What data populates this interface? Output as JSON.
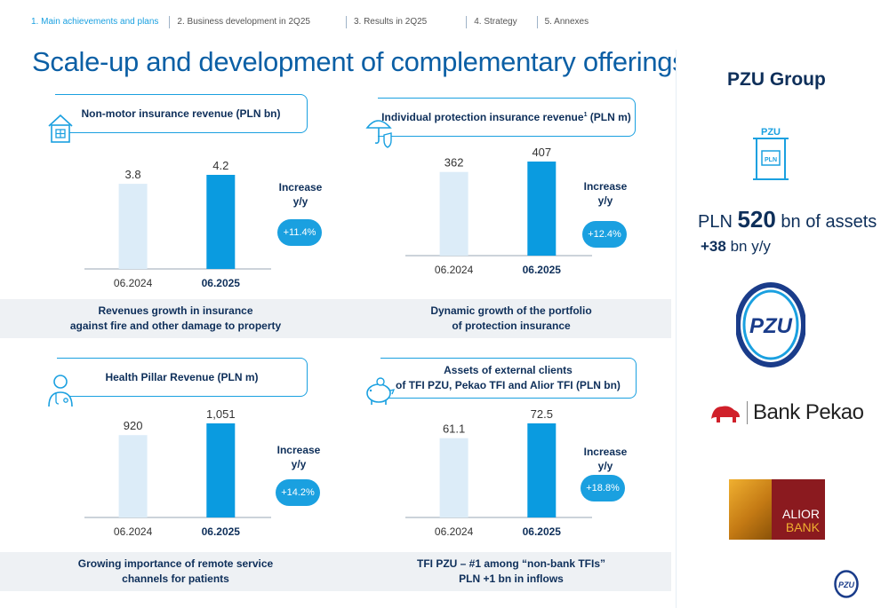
{
  "nav": {
    "items": [
      "1. Main achievements and plans",
      "2. Business development in 2Q25",
      "3. Results in 2Q25",
      "4. Strategy",
      "5. Annexes"
    ]
  },
  "title": "Scale-up and development of complementary offerings",
  "sidebar": {
    "title": "PZU Group",
    "building_label": "PZU",
    "building_sign": "PLN",
    "assets_prefix": "PLN ",
    "assets_value": "520",
    "assets_suffix": " bn of assets",
    "growth_value": "+38",
    "growth_suffix": " bn y/y",
    "pzu_logo_text": "PZU",
    "pekao_text": "Bank Pekao",
    "alior_line1": "ALIOR",
    "alior_line2": "BANK"
  },
  "panels": [
    {
      "header": "Non-motor insurance revenue (PLN bn)",
      "header_sup": "",
      "header_suffix": "",
      "icon": "house-icon",
      "increase_label_1": "Increase",
      "increase_label_2": "y/y",
      "increase_value": "+11.4%",
      "caption_1": "Revenues growth in insurance",
      "caption_2": "against fire and other damage to property"
    },
    {
      "header": "Individual protection insurance revenue",
      "header_sup": "1",
      "header_suffix": " (PLN m)",
      "icon": "umbrella-shield-icon",
      "increase_label_1": "Increase",
      "increase_label_2": "y/y",
      "increase_value": "+12.4%",
      "caption_1": "Dynamic growth of the portfolio",
      "caption_2": "of protection insurance"
    },
    {
      "header": "Health Pillar Revenue (PLN m)",
      "header_sup": "",
      "header_suffix": "",
      "icon": "doctor-icon",
      "increase_label_1": "Increase",
      "increase_label_2": "y/y",
      "increase_value": "+14.2%",
      "caption_1": "Growing importance of remote service",
      "caption_2": "channels for patients"
    },
    {
      "header": "Assets of external clients",
      "header_sup": "",
      "header_suffix": "of TFI PZU, Pekao TFI and Alior TFI (PLN bn)",
      "icon": "piggy-bank-icon",
      "increase_label_1": "Increase",
      "increase_label_2": "y/y",
      "increase_value": "+18.8%",
      "caption_1": "TFI PZU – #1 among “non-bank TFIs”",
      "caption_2": "PLN +1 bn in inflows"
    }
  ],
  "chart_data": [
    {
      "type": "bar",
      "categories": [
        "06.2024",
        "06.2025"
      ],
      "values": [
        3.8,
        4.2
      ],
      "value_labels": [
        "3.8",
        "4.2"
      ],
      "title": "Non-motor insurance revenue (PLN bn)",
      "colors": [
        "#dcecf8",
        "#0a9be0"
      ]
    },
    {
      "type": "bar",
      "categories": [
        "06.2024",
        "06.2025"
      ],
      "values": [
        362,
        407
      ],
      "value_labels": [
        "362",
        "407"
      ],
      "title": "Individual protection insurance revenue1 (PLN m)",
      "colors": [
        "#dcecf8",
        "#0a9be0"
      ]
    },
    {
      "type": "bar",
      "categories": [
        "06.2024",
        "06.2025"
      ],
      "values": [
        920,
        1051
      ],
      "value_labels": [
        "920",
        "1,051"
      ],
      "title": "Health Pillar Revenue (PLN m)",
      "colors": [
        "#dcecf8",
        "#0a9be0"
      ]
    },
    {
      "type": "bar",
      "categories": [
        "06.2024",
        "06.2025"
      ],
      "values": [
        61.1,
        72.5
      ],
      "value_labels": [
        "61.1",
        "72.5"
      ],
      "title": "Assets of external clients of TFI PZU, Pekao TFI and Alior TFI (PLN bn)",
      "colors": [
        "#dcecf8",
        "#0a9be0"
      ]
    }
  ]
}
